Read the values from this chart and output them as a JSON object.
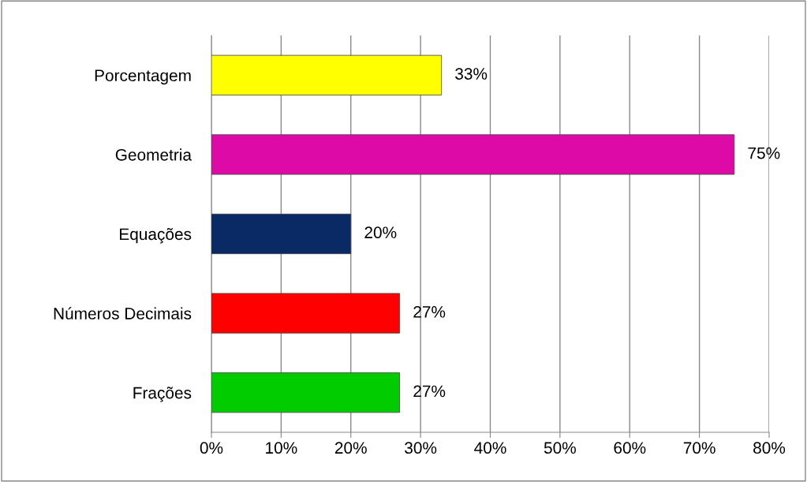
{
  "chart_data": {
    "type": "bar",
    "orientation": "horizontal",
    "categories": [
      "Porcentagem",
      "Geometria",
      "Equações",
      "Números Decimais",
      "Frações"
    ],
    "values": [
      33,
      75,
      20,
      27,
      27
    ],
    "colors": [
      "#ffff00",
      "#dd0aa8",
      "#0a2a66",
      "#ff0000",
      "#00cc00"
    ],
    "value_labels": [
      "33%",
      "75%",
      "20%",
      "27%",
      "27%"
    ],
    "xlim": [
      0,
      80
    ],
    "xticks": [
      {
        "value": 0,
        "label": "0%"
      },
      {
        "value": 10,
        "label": "10%"
      },
      {
        "value": 20,
        "label": "20%"
      },
      {
        "value": 30,
        "label": "30%"
      },
      {
        "value": 40,
        "label": "40%"
      },
      {
        "value": 50,
        "label": "50%"
      },
      {
        "value": 60,
        "label": "60%"
      },
      {
        "value": 70,
        "label": "70%"
      },
      {
        "value": 80,
        "label": "80%"
      }
    ],
    "grid": "x",
    "legend": false
  }
}
